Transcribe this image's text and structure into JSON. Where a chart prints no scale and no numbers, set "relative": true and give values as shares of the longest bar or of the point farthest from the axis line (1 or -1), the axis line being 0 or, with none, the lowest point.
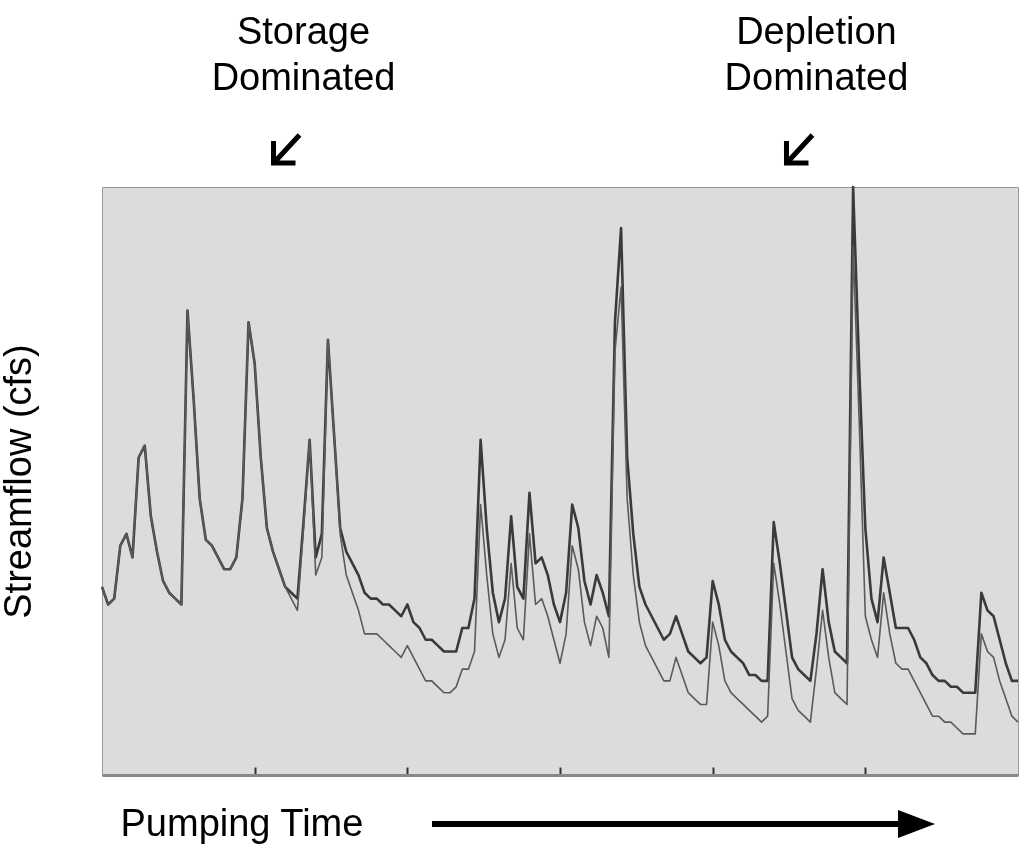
{
  "chart_data": {
    "type": "line",
    "relative": true,
    "xlabel": "Pumping Time",
    "ylabel": "Streamflow (cfs)",
    "annotations": [
      "Storage\nDominated",
      "Depletion\nDominated"
    ],
    "categories": [
      null,
      null,
      null,
      null,
      null,
      null,
      null,
      null,
      null,
      null,
      null,
      null,
      null,
      null,
      null,
      null,
      null,
      null,
      null,
      null,
      null,
      null,
      null,
      null,
      null,
      null,
      null,
      null,
      null,
      null,
      null,
      null,
      null,
      null,
      null,
      null,
      null,
      null,
      null,
      null,
      null,
      null,
      null,
      null,
      null,
      null,
      null,
      null,
      null,
      null,
      null,
      null,
      null,
      null,
      null,
      null,
      null,
      null,
      null,
      null,
      null,
      null,
      null,
      null,
      null,
      null,
      null,
      null,
      null,
      null,
      null,
      null,
      null,
      null,
      null,
      null,
      null,
      null,
      null,
      null,
      null,
      null,
      null,
      null,
      null,
      null,
      null,
      null,
      null,
      null,
      null,
      null,
      null,
      null,
      null,
      null,
      null,
      null,
      null,
      null,
      null,
      null,
      null,
      null,
      null,
      null,
      null,
      null,
      null,
      null,
      null,
      null,
      null,
      null,
      null,
      null,
      null,
      null,
      null,
      null,
      null,
      null,
      null,
      null,
      null,
      null,
      null,
      null,
      null,
      null,
      null,
      null,
      null,
      null,
      null,
      null,
      null,
      null,
      null,
      null,
      null,
      null,
      null,
      null,
      null,
      null,
      null,
      null,
      null,
      null,
      null
    ],
    "series": [
      {
        "color": "#3a3a3a",
        "values": [
          0.32,
          0.29,
          0.3,
          0.39,
          0.41,
          0.37,
          0.54,
          0.56,
          0.44,
          0.38,
          0.33,
          0.31,
          0.3,
          0.29,
          0.79,
          0.64,
          0.47,
          0.4,
          0.39,
          0.37,
          0.35,
          0.35,
          0.37,
          0.47,
          0.77,
          0.7,
          0.54,
          0.42,
          0.38,
          0.35,
          0.32,
          0.31,
          0.3,
          0.43,
          0.57,
          0.37,
          0.41,
          0.74,
          0.58,
          0.42,
          0.38,
          0.36,
          0.34,
          0.31,
          0.3,
          0.3,
          0.29,
          0.29,
          0.28,
          0.27,
          0.29,
          0.26,
          0.25,
          0.23,
          0.23,
          0.22,
          0.21,
          0.21,
          0.21,
          0.25,
          0.25,
          0.3,
          0.57,
          0.42,
          0.31,
          0.26,
          0.3,
          0.44,
          0.32,
          0.3,
          0.48,
          0.36,
          0.37,
          0.34,
          0.29,
          0.26,
          0.31,
          0.46,
          0.42,
          0.33,
          0.29,
          0.34,
          0.31,
          0.27,
          0.77,
          0.93,
          0.54,
          0.41,
          0.32,
          0.29,
          0.27,
          0.25,
          0.23,
          0.24,
          0.27,
          0.24,
          0.21,
          0.2,
          0.19,
          0.2,
          0.33,
          0.29,
          0.23,
          0.21,
          0.2,
          0.19,
          0.17,
          0.17,
          0.16,
          0.16,
          0.43,
          0.36,
          0.28,
          0.2,
          0.18,
          0.17,
          0.16,
          0.24,
          0.35,
          0.26,
          0.21,
          0.2,
          0.19,
          1.0,
          0.69,
          0.42,
          0.3,
          0.26,
          0.37,
          0.31,
          0.25,
          0.25,
          0.25,
          0.23,
          0.2,
          0.19,
          0.17,
          0.16,
          0.16,
          0.15,
          0.15,
          0.14,
          0.14,
          0.14,
          0.31,
          0.28,
          0.27,
          0.23,
          0.19,
          0.16,
          0.16
        ]
      },
      {
        "color": "#5a5a5a",
        "values": [
          0.32,
          0.29,
          0.3,
          0.39,
          0.41,
          0.37,
          0.54,
          0.56,
          0.44,
          0.38,
          0.33,
          0.31,
          0.3,
          0.29,
          0.79,
          0.64,
          0.47,
          0.4,
          0.39,
          0.37,
          0.35,
          0.35,
          0.37,
          0.47,
          0.77,
          0.7,
          0.54,
          0.42,
          0.38,
          0.35,
          0.32,
          0.3,
          0.28,
          0.42,
          0.57,
          0.34,
          0.37,
          0.74,
          0.58,
          0.41,
          0.34,
          0.31,
          0.28,
          0.24,
          0.24,
          0.24,
          0.23,
          0.22,
          0.21,
          0.2,
          0.22,
          0.2,
          0.18,
          0.16,
          0.16,
          0.15,
          0.14,
          0.14,
          0.15,
          0.18,
          0.18,
          0.21,
          0.46,
          0.34,
          0.24,
          0.2,
          0.23,
          0.36,
          0.25,
          0.23,
          0.41,
          0.29,
          0.3,
          0.27,
          0.23,
          0.19,
          0.24,
          0.39,
          0.35,
          0.26,
          0.22,
          0.27,
          0.25,
          0.2,
          0.72,
          0.83,
          0.47,
          0.34,
          0.26,
          0.22,
          0.2,
          0.18,
          0.16,
          0.16,
          0.2,
          0.17,
          0.14,
          0.13,
          0.12,
          0.12,
          0.26,
          0.22,
          0.16,
          0.14,
          0.13,
          0.12,
          0.11,
          0.1,
          0.09,
          0.1,
          0.36,
          0.29,
          0.21,
          0.13,
          0.11,
          0.1,
          0.09,
          0.18,
          0.28,
          0.2,
          0.14,
          0.13,
          0.12,
          0.9,
          0.6,
          0.27,
          0.23,
          0.2,
          0.31,
          0.24,
          0.19,
          0.18,
          0.18,
          0.16,
          0.14,
          0.12,
          0.1,
          0.1,
          0.09,
          0.09,
          0.08,
          0.07,
          0.07,
          0.07,
          0.24,
          0.21,
          0.2,
          0.16,
          0.13,
          0.1,
          0.09
        ]
      }
    ]
  }
}
